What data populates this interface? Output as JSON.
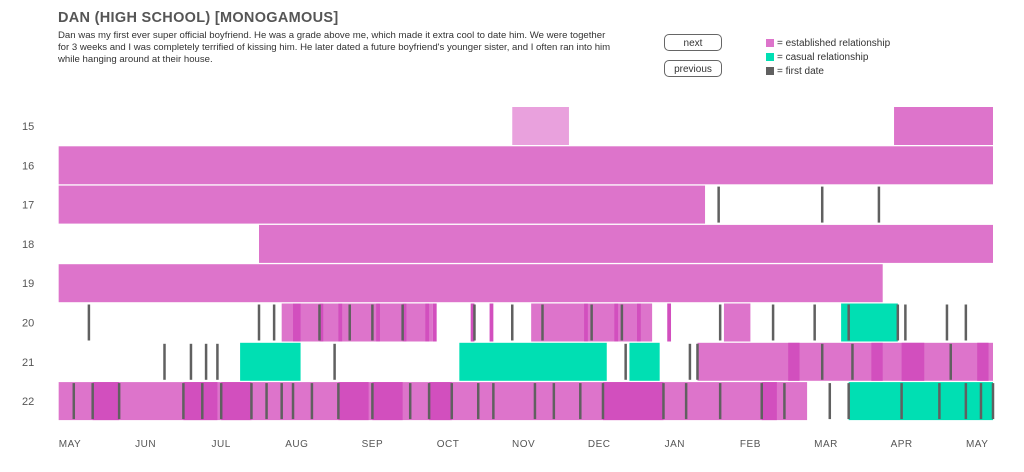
{
  "header": {
    "title": "DAN (HIGH SCHOOL) [MONOGAMOUS]",
    "description": "Dan was my first ever super official boyfriend. He was a grade above me, which made it extra cool to date him. We were together for 3 weeks and I was completely terrified of kissing him. He later dated a future boyfriend's younger sister, and I often ran into him while hanging around at their house."
  },
  "nav": {
    "next_label": "next",
    "previous_label": "previous"
  },
  "legend": [
    {
      "label": "= established relationship",
      "color": "#dd74cb"
    },
    {
      "label": "= casual relationship",
      "color": "#00dfb3"
    },
    {
      "label": "= first date",
      "color": "#606060"
    }
  ],
  "colors": {
    "established": "#dd74cb",
    "established_dark": "#d24fbe",
    "highlight": "#e9a1dd",
    "casual": "#00dfb3",
    "first_date": "#606060"
  },
  "chart_data": {
    "type": "timeline",
    "x_ticks": [
      "MAY",
      "JUN",
      "JUL",
      "AUG",
      "SEP",
      "OCT",
      "NOV",
      "DEC",
      "JAN",
      "FEB",
      "MAR",
      "APR",
      "MAY"
    ],
    "x_unit": "months since May of the row's year",
    "x_range": [
      0,
      12.3
    ],
    "rows": [
      {
        "label": "15",
        "established": [
          [
            10.9,
            12.3
          ]
        ],
        "highlight": [
          [
            5.85,
            6.6
          ]
        ]
      },
      {
        "label": "16",
        "established": [
          [
            -0.15,
            12.3
          ]
        ]
      },
      {
        "label": "17",
        "established": [
          [
            -0.15,
            8.4
          ]
        ],
        "first_dates": [
          8.58,
          9.95,
          10.7
        ]
      },
      {
        "label": "18",
        "established": [
          [
            2.5,
            12.3
          ]
        ]
      },
      {
        "label": "19",
        "established": [
          [
            -0.15,
            10.75
          ]
        ]
      },
      {
        "label": "20",
        "established": [
          [
            2.8,
            4.8
          ],
          [
            6.1,
            7.7
          ],
          [
            8.65,
            9.0
          ]
        ],
        "established_dark": [
          [
            2.95,
            3.05
          ],
          [
            3.3,
            3.35
          ],
          [
            3.55,
            3.6
          ],
          [
            4.05,
            4.1
          ],
          [
            4.4,
            4.45
          ],
          [
            4.7,
            4.75
          ],
          [
            4.8,
            4.85
          ],
          [
            6.8,
            6.85
          ],
          [
            7.2,
            7.25
          ],
          [
            7.5,
            7.55
          ],
          [
            7.9,
            7.95
          ],
          [
            5.3,
            5.35
          ],
          [
            5.55,
            5.6
          ]
        ],
        "casual": [
          [
            10.2,
            10.95
          ]
        ],
        "first_dates": [
          0.25,
          2.5,
          2.7,
          3.3,
          3.7,
          4.0,
          4.4,
          5.35,
          5.85,
          6.25,
          6.9,
          7.3,
          8.6,
          9.3,
          9.85,
          10.3,
          10.95,
          11.05,
          11.6,
          11.85
        ]
      },
      {
        "label": "21",
        "established": [
          [
            8.3,
            12.3
          ]
        ],
        "established_dark": [
          [
            9.5,
            9.65
          ],
          [
            10.6,
            10.75
          ],
          [
            11.0,
            11.3
          ],
          [
            12.0,
            12.15
          ]
        ],
        "casual": [
          [
            2.25,
            3.05
          ],
          [
            5.15,
            7.1
          ],
          [
            7.4,
            7.8
          ]
        ],
        "first_dates": [
          1.25,
          1.6,
          1.8,
          1.95,
          3.5,
          7.35,
          8.2,
          8.3,
          9.95,
          10.35,
          11.65
        ]
      },
      {
        "label": "22",
        "established": [
          [
            -0.15,
            9.75
          ]
        ],
        "established_dark": [
          [
            0.3,
            0.65
          ],
          [
            1.5,
            1.95
          ],
          [
            2.0,
            2.4
          ],
          [
            3.55,
            3.95
          ],
          [
            4.0,
            4.4
          ],
          [
            4.75,
            5.05
          ],
          [
            7.05,
            7.85
          ],
          [
            9.15,
            9.35
          ]
        ],
        "casual": [
          [
            10.3,
            12.3
          ]
        ],
        "first_dates": [
          0.05,
          0.3,
          0.65,
          1.5,
          1.75,
          2.0,
          2.4,
          2.6,
          2.8,
          2.95,
          3.2,
          3.55,
          4.0,
          4.5,
          4.75,
          5.05,
          5.4,
          5.6,
          6.15,
          6.4,
          6.75,
          7.05,
          7.85,
          8.15,
          8.6,
          9.15,
          9.45,
          10.05,
          10.3,
          11.0,
          11.5,
          11.85,
          12.05,
          12.25
        ]
      }
    ]
  }
}
